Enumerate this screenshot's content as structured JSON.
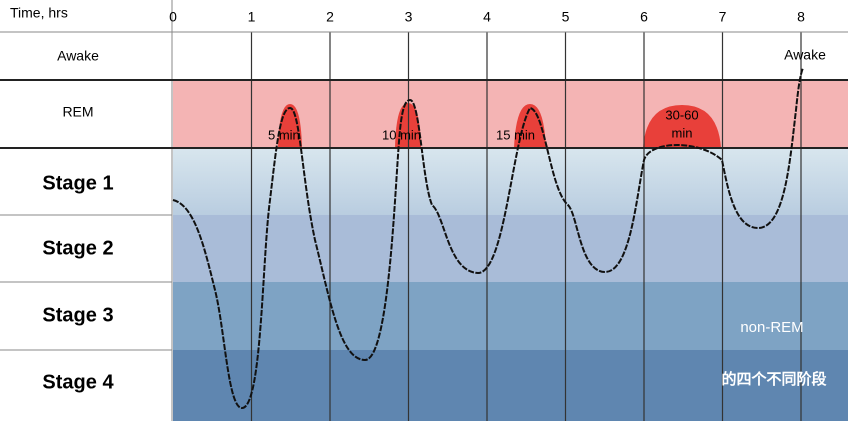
{
  "header": {
    "time_label": "Time, hrs",
    "hours": [
      "0",
      "1",
      "2",
      "3",
      "4",
      "5",
      "6",
      "7",
      "8"
    ]
  },
  "rows": [
    "Awake",
    "REM",
    "Stage 1",
    "Stage 2",
    "Stage 3",
    "Stage 4"
  ],
  "rem_labels": [
    "5 min",
    "10 min",
    "15 min",
    "30-60",
    "min"
  ],
  "awake_label": "Awake",
  "annotation": [
    "non-REM",
    "的四个不同阶段"
  ]
}
